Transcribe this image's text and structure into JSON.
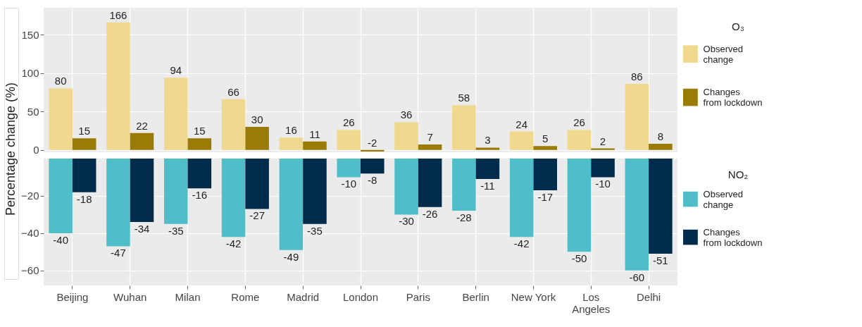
{
  "chart_data": [
    {
      "type": "bar",
      "ylabel": "Percentage change (%)",
      "categories": [
        "Beijing",
        "Wuhan",
        "Milan",
        "Rome",
        "Madrid",
        "London",
        "Paris",
        "Berlin",
        "New York",
        "Los Angeles",
        "Delhi"
      ],
      "legend_title": "O₃",
      "series": [
        {
          "name": "Observed change",
          "color": "#f0d88e",
          "values": [
            80,
            166,
            94,
            66,
            16,
            26,
            36,
            58,
            24,
            26,
            86
          ]
        },
        {
          "name": "Changes from lockdown",
          "color": "#9a7b06",
          "values": [
            15,
            22,
            15,
            30,
            11,
            -2,
            7,
            3,
            5,
            2,
            8
          ]
        }
      ],
      "ylim": [
        -3,
        185
      ],
      "yticks": [
        0,
        50,
        100,
        150
      ],
      "tick_labels": "y",
      "data_labels": true,
      "grid": true,
      "legend": "right"
    },
    {
      "type": "bar",
      "categories": [
        "Beijing",
        "Wuhan",
        "Milan",
        "Rome",
        "Madrid",
        "London",
        "Paris",
        "Berlin",
        "New York",
        "Los Angeles",
        "Delhi"
      ],
      "legend_title": "NO₂",
      "series": [
        {
          "name": "Observed change",
          "color": "#50bec8",
          "values": [
            -40,
            -47,
            -35,
            -42,
            -49,
            -10,
            -30,
            -28,
            -42,
            -50,
            -60
          ]
        },
        {
          "name": "Changes from lockdown",
          "color": "#002b4a",
          "values": [
            -18,
            -34,
            -16,
            -27,
            -35,
            -8,
            -26,
            -11,
            -17,
            -10,
            -51
          ]
        }
      ],
      "ylim": [
        -68,
        0
      ],
      "yticks": [
        -60,
        -40,
        -20
      ],
      "data_labels": true,
      "grid": true,
      "legend": "right"
    }
  ]
}
